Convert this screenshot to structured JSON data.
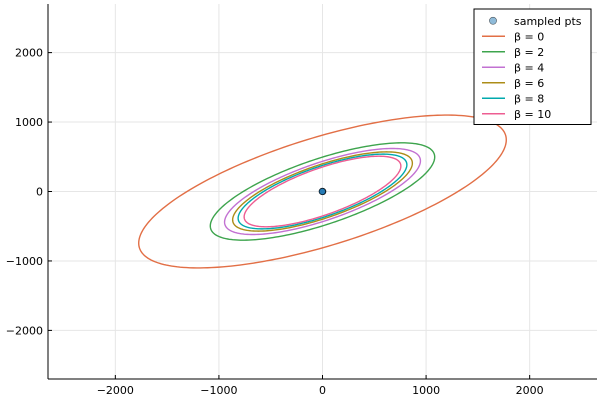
{
  "chart_data": {
    "type": "line",
    "title": "",
    "xlabel": "",
    "ylabel": "",
    "xlim": [
      -2650,
      2650
    ],
    "ylim": [
      -2700,
      2700
    ],
    "grid": true,
    "legend_position": "top-right",
    "x_ticks": [
      {
        "value": -2000,
        "label": "−2000"
      },
      {
        "value": -1000,
        "label": "−1000"
      },
      {
        "value": 0,
        "label": "0"
      },
      {
        "value": 1000,
        "label": "1000"
      },
      {
        "value": 2000,
        "label": "2000"
      }
    ],
    "y_ticks": [
      {
        "value": -2000,
        "label": "−2000"
      },
      {
        "value": -1000,
        "label": "−1000"
      },
      {
        "value": 0,
        "label": "0"
      },
      {
        "value": 1000,
        "label": "1000"
      },
      {
        "value": 2000,
        "label": "2000"
      }
    ],
    "scatter": {
      "name": "sampled pts",
      "color": "#1f77b4",
      "points": [
        [
          0,
          0
        ],
        [
          3,
          -2
        ],
        [
          -2,
          3
        ],
        [
          2,
          2
        ],
        [
          -3,
          -1
        ]
      ]
    },
    "series": [
      {
        "name": "β = 0",
        "color": "#e26f46",
        "a": 1953.5,
        "b": 736.8,
        "angle_deg": 26.86
      },
      {
        "name": "β = 2",
        "color": "#3da44d",
        "a": 1211.9,
        "b": 442.5,
        "angle_deg": 28.8
      },
      {
        "name": "β = 4",
        "color": "#c271d2",
        "a": 1062.0,
        "b": 386.9,
        "angle_deg": 29.28
      },
      {
        "name": "β = 6",
        "color": "#ac8d18",
        "a": 975.9,
        "b": 354.6,
        "angle_deg": 29.45
      },
      {
        "name": "β = 8",
        "color": "#00a9ad",
        "a": 917.4,
        "b": 333.7,
        "angle_deg": 29.61
      },
      {
        "name": "β = 10",
        "color": "#ed5d92",
        "a": 856.3,
        "b": 311.7,
        "angle_deg": 30.2
      }
    ]
  }
}
